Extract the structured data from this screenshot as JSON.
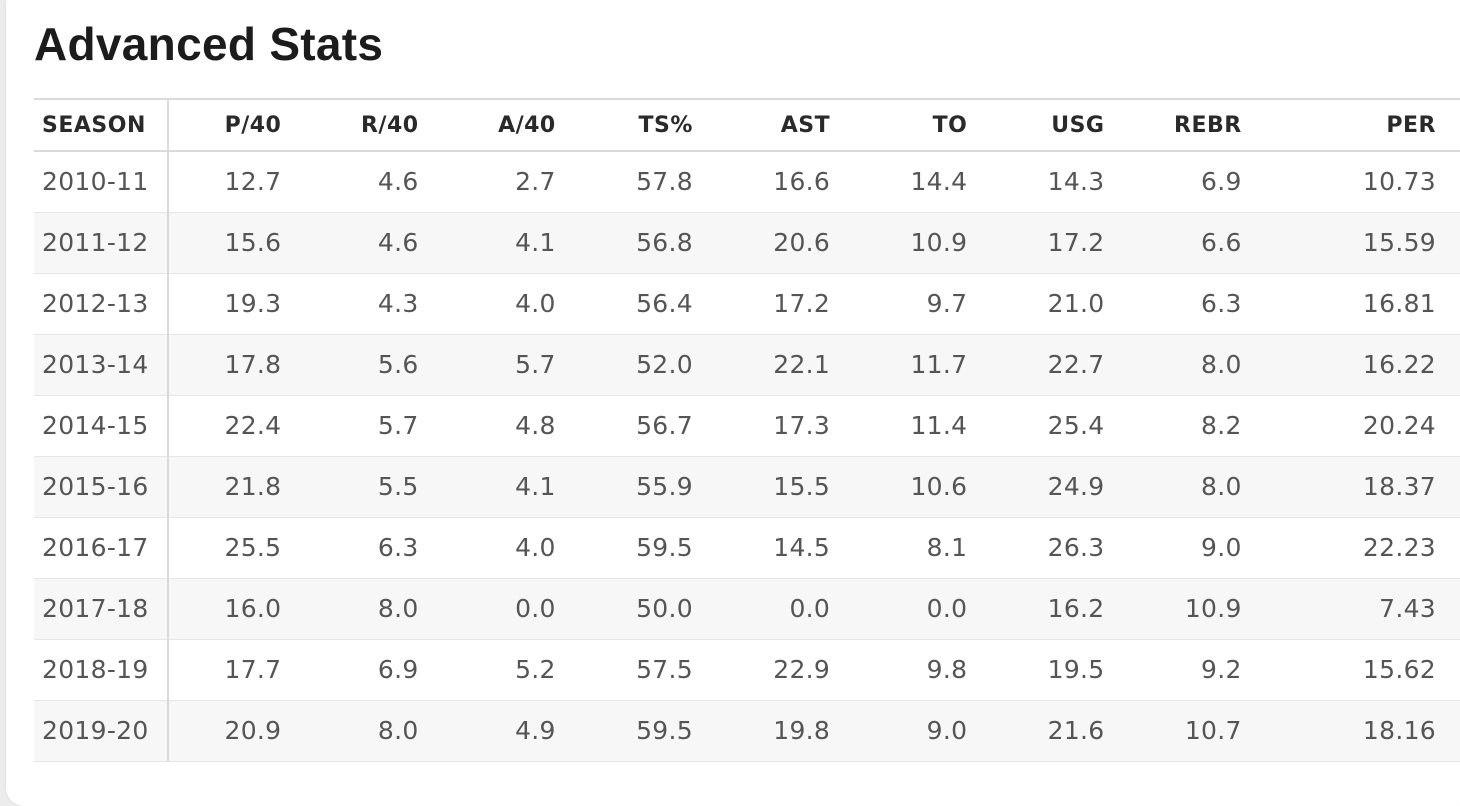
{
  "section": {
    "title": "Advanced Stats"
  },
  "table": {
    "columns": [
      "SEASON",
      "P/40",
      "R/40",
      "A/40",
      "TS%",
      "AST",
      "TO",
      "USG",
      "REBR",
      "PER"
    ],
    "rows": [
      [
        "2010-11",
        "12.7",
        "4.6",
        "2.7",
        "57.8",
        "16.6",
        "14.4",
        "14.3",
        "6.9",
        "10.73"
      ],
      [
        "2011-12",
        "15.6",
        "4.6",
        "4.1",
        "56.8",
        "20.6",
        "10.9",
        "17.2",
        "6.6",
        "15.59"
      ],
      [
        "2012-13",
        "19.3",
        "4.3",
        "4.0",
        "56.4",
        "17.2",
        "9.7",
        "21.0",
        "6.3",
        "16.81"
      ],
      [
        "2013-14",
        "17.8",
        "5.6",
        "5.7",
        "52.0",
        "22.1",
        "11.7",
        "22.7",
        "8.0",
        "16.22"
      ],
      [
        "2014-15",
        "22.4",
        "5.7",
        "4.8",
        "56.7",
        "17.3",
        "11.4",
        "25.4",
        "8.2",
        "20.24"
      ],
      [
        "2015-16",
        "21.8",
        "5.5",
        "4.1",
        "55.9",
        "15.5",
        "10.6",
        "24.9",
        "8.0",
        "18.37"
      ],
      [
        "2016-17",
        "25.5",
        "6.3",
        "4.0",
        "59.5",
        "14.5",
        "8.1",
        "26.3",
        "9.0",
        "22.23"
      ],
      [
        "2017-18",
        "16.0",
        "8.0",
        "0.0",
        "50.0",
        "0.0",
        "0.0",
        "16.2",
        "10.9",
        "7.43"
      ],
      [
        "2018-19",
        "17.7",
        "6.9",
        "5.2",
        "57.5",
        "22.9",
        "9.8",
        "19.5",
        "9.2",
        "15.62"
      ],
      [
        "2019-20",
        "20.9",
        "8.0",
        "4.9",
        "59.5",
        "19.8",
        "9.0",
        "21.6",
        "10.7",
        "18.16"
      ]
    ]
  }
}
